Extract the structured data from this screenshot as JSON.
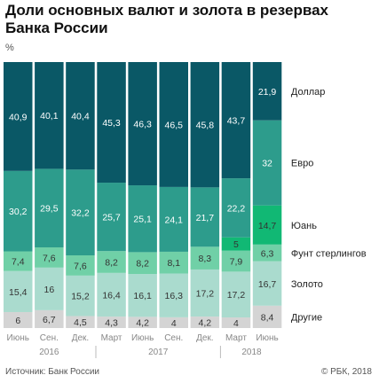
{
  "header": {
    "title": "Доли основных валют и золота в резервах Банка России",
    "unit": "%"
  },
  "footer": {
    "source": "Источник: Банк России",
    "brand": "© РБК, 2018"
  },
  "colors": {
    "Доллар": "#0a5866",
    "Евро": "#2d9c8c",
    "Юань": "#11b874",
    "Фунт стерлингов": "#70d0a7",
    "Золото": "#aadbce",
    "Другие": "#d4d4d4",
    "value_label_dark_bg": "#ffffff",
    "value_label_light_bg": "#333333",
    "axis_text": "#888888"
  },
  "chart_data": {
    "type": "stacked_bar",
    "normalized": true,
    "categories": [
      "Июнь 2016",
      "Сен. 2016",
      "Дек. 2016",
      "Март 2017",
      "Июнь 2017",
      "Сен. 2017",
      "Дек. 2017",
      "Март 2018",
      "Июнь 2018"
    ],
    "x_tick_labels": [
      "Июнь",
      "Сен.",
      "Дек.",
      "Март",
      "Июнь",
      "Сен.",
      "Дек.",
      "Март",
      "Июнь"
    ],
    "year_labels": [
      {
        "label": "2016",
        "start": 0,
        "end": 2
      },
      {
        "label": "2017",
        "start": 3,
        "end": 6
      },
      {
        "label": "2018",
        "start": 7,
        "end": 8
      }
    ],
    "series": [
      {
        "name": "Другие",
        "values": [
          6,
          6.7,
          4.5,
          4.3,
          4.2,
          4,
          4.2,
          4,
          8.4
        ],
        "labels": [
          "6",
          "6,7",
          "4,5",
          "4,3",
          "4,2",
          "4",
          "4,2",
          "4",
          "8,4"
        ]
      },
      {
        "name": "Золото",
        "values": [
          15.4,
          16,
          15.2,
          16.4,
          16.1,
          16.3,
          17.2,
          17.2,
          16.7
        ],
        "labels": [
          "15,4",
          "16",
          "15,2",
          "16,4",
          "16,1",
          "16,3",
          "17,2",
          "17,2",
          "16,7"
        ]
      },
      {
        "name": "Фунт стерлингов",
        "values": [
          7.4,
          7.6,
          7.6,
          8.2,
          8.2,
          8.1,
          8.3,
          7.9,
          6.3
        ],
        "labels": [
          "7,4",
          "7,6",
          "7,6",
          "8,2",
          "8,2",
          "8,1",
          "8,3",
          "7,9",
          "6,3"
        ]
      },
      {
        "name": "Юань",
        "values": [
          0,
          0,
          0,
          0,
          0,
          0,
          0,
          5,
          14.7
        ],
        "labels": [
          "",
          "",
          "",
          "",
          "",
          "",
          "",
          "5",
          "14,7"
        ]
      },
      {
        "name": "Евро",
        "values": [
          30.2,
          29.5,
          32.2,
          25.7,
          25.1,
          24.1,
          21.7,
          22.2,
          32
        ],
        "labels": [
          "30,2",
          "29,5",
          "32,2",
          "25,7",
          "25,1",
          "24,1",
          "21,7",
          "22,2",
          "32"
        ]
      },
      {
        "name": "Доллар",
        "values": [
          40.9,
          40.1,
          40.4,
          45.3,
          46.3,
          46.5,
          45.8,
          43.7,
          21.9
        ],
        "labels": [
          "40,9",
          "40,1",
          "40,4",
          "45,3",
          "46,3",
          "46,5",
          "45,8",
          "43,7",
          "21,9"
        ]
      }
    ],
    "legend_position": "right",
    "ylim": [
      0,
      100
    ]
  }
}
